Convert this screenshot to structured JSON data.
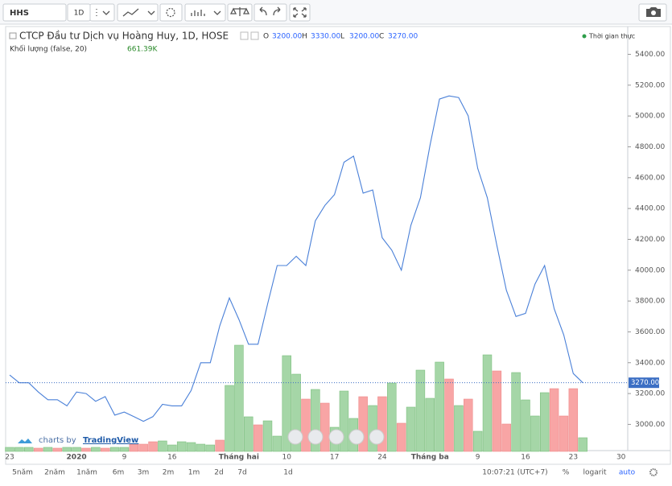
{
  "toolbar": {
    "symbol": "HHS",
    "interval": "1D"
  },
  "chart_data": {
    "type": "line",
    "title": "CTCP Đầu tư Dịch vụ Hoàng Huy, 1D, HOSE",
    "ohlc": {
      "labels": [
        "O",
        "H",
        "L",
        "C"
      ],
      "values": [
        3200,
        3330,
        3200,
        3270
      ],
      "value_labels": [
        "3200.00",
        "3330.00",
        "3200.00",
        "3270.00"
      ]
    },
    "status": "Thời gian thực",
    "volume_title": "Khối lượng (false, 20)",
    "last_volume": {
      "value": 661.39,
      "label": "661.39K"
    },
    "last_price": {
      "value": 3270,
      "label": "3270.00"
    },
    "categories": [
      "23",
      null,
      null,
      null,
      null,
      null,
      null,
      "2020",
      null,
      null,
      null,
      null,
      "9",
      null,
      null,
      null,
      null,
      "16",
      null,
      null,
      null,
      null,
      null,
      null,
      "Tháng hai",
      null,
      null,
      null,
      null,
      "10",
      null,
      null,
      null,
      null,
      "17",
      null,
      null,
      null,
      null,
      "24",
      null,
      null,
      null,
      null,
      "Tháng ba",
      null,
      null,
      null,
      null,
      "9",
      null,
      null,
      null,
      null,
      "16",
      null,
      null,
      null,
      null,
      "23",
      null,
      null,
      null,
      null,
      "30"
    ],
    "series": [
      {
        "name": "HHS",
        "color": "#4a80d8",
        "values": [
          3320,
          3270,
          3270,
          3210,
          3160,
          3160,
          3120,
          3210,
          3200,
          3150,
          3180,
          3060,
          3080,
          3050,
          3020,
          3050,
          3130,
          3120,
          3120,
          3220,
          3400,
          3400,
          3640,
          3820,
          3680,
          3520,
          3520,
          3780,
          4030,
          4030,
          4090,
          4030,
          4320,
          4420,
          4490,
          4700,
          4740,
          4500,
          4520,
          4210,
          4130,
          4000,
          4290,
          4470,
          4810,
          5110,
          5130,
          5120,
          5000,
          4660,
          4470,
          4160,
          3870,
          3700,
          3720,
          3910,
          4030,
          3750,
          3580,
          3330,
          3270,
          null,
          null,
          null,
          null
        ]
      },
      {
        "name": "Khối lượng",
        "axis": "volume",
        "values": [
          195,
          195,
          195,
          156,
          195,
          156,
          195,
          195,
          156,
          195,
          156,
          195,
          195,
          350,
          350,
          467,
          506,
          311,
          467,
          428,
          350,
          311,
          545,
          3190,
          5135,
          1673,
          1284,
          1478,
          739,
          4629,
          3734,
          2529,
          2995,
          2334,
          1167,
          2918,
          1595,
          2645,
          2217,
          2645,
          3307,
          1362,
          2140,
          3929,
          2567,
          4318,
          3501,
          2217,
          2529,
          973,
          4668,
          3890,
          1323,
          3812,
          2490,
          1712,
          2840,
          3034,
          1712,
          3034,
          661.39,
          null,
          null,
          null,
          null
        ],
        "colors": [
          "#a5d6a7",
          "#a5d6a7",
          "#a5d6a7",
          "#f8a5a5",
          "#a5d6a7",
          "#f8a5a5",
          "#a5d6a7",
          "#a5d6a7",
          "#f8a5a5",
          "#a5d6a7",
          "#f8a5a5",
          "#a5d6a7",
          "#a5d6a7",
          "#f8a5a5",
          "#f8a5a5",
          "#f8a5a5",
          "#a5d6a7",
          "#a5d6a7",
          "#a5d6a7",
          "#a5d6a7",
          "#a5d6a7",
          "#a5d6a7",
          "#f8a5a5",
          "#a5d6a7",
          "#a5d6a7",
          "#a5d6a7",
          "#f8a5a5",
          "#a5d6a7",
          "#a5d6a7",
          "#a5d6a7",
          "#a5d6a7",
          "#f8a5a5",
          "#a5d6a7",
          "#f8a5a5",
          "#a5d6a7",
          "#a5d6a7",
          "#a5d6a7",
          "#f8a5a5",
          "#a5d6a7",
          "#f8a5a5",
          "#a5d6a7",
          "#f8a5a5",
          "#a5d6a7",
          "#a5d6a7",
          "#a5d6a7",
          "#a5d6a7",
          "#f8a5a5",
          "#a5d6a7",
          "#f8a5a5",
          "#a5d6a7",
          "#a5d6a7",
          "#f8a5a5",
          "#f8a5a5",
          "#a5d6a7",
          "#a5d6a7",
          "#a5d6a7",
          "#a5d6a7",
          "#f8a5a5",
          "#f8a5a5",
          "#f8a5a5",
          "#a5d6a7",
          null,
          null,
          null,
          null
        ]
      }
    ],
    "ylim": [
      2830,
      5580
    ],
    "yticks": [
      {
        "value": 3000,
        "label": "3000.00"
      },
      {
        "value": 3200,
        "label": "3200.00"
      },
      {
        "value": 3400,
        "label": "3400.00"
      },
      {
        "value": 3600,
        "label": "3600.00"
      },
      {
        "value": 3800,
        "label": "3800.00"
      },
      {
        "value": 4000,
        "label": "4000.00"
      },
      {
        "value": 4200,
        "label": "4200.00"
      },
      {
        "value": 4400,
        "label": "4400.00"
      },
      {
        "value": 4600,
        "label": "4600.00"
      },
      {
        "value": 4800,
        "label": "4800.00"
      },
      {
        "value": 5000,
        "label": "5000.00"
      },
      {
        "value": 5200,
        "label": "5200.00"
      },
      {
        "value": 5400,
        "label": "5400.00"
      }
    ],
    "grid": false
  },
  "credit": {
    "prefix": "charts by",
    "brand": "TradingView"
  },
  "bottom_bar": {
    "ranges": [
      "5năm",
      "2năm",
      "1năm",
      "6m",
      "3m",
      "2m",
      "1m",
      "2d",
      "7d",
      "1d"
    ],
    "time": "10:07:21 (UTC+7)",
    "percent": "%",
    "log": "logarit",
    "auto": "auto"
  }
}
